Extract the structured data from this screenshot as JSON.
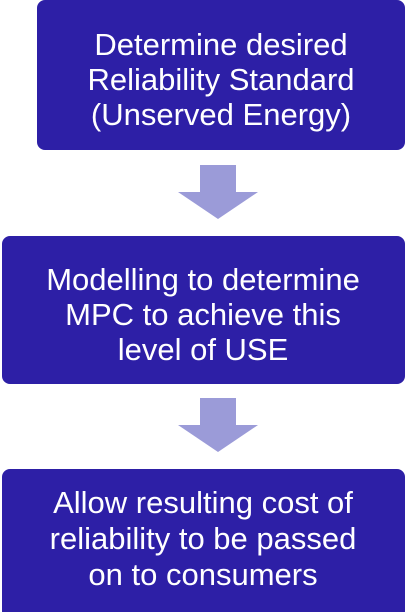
{
  "nodes": [
    {
      "lines": [
        "Determine desired",
        "Reliability Standard",
        "(Unserved Energy)"
      ]
    },
    {
      "lines": [
        "Modelling to determine",
        "MPC to achieve this",
        "level of USE"
      ]
    },
    {
      "lines": [
        "Allow resulting cost of",
        "reliability to be passed",
        "on to consumers"
      ]
    }
  ]
}
